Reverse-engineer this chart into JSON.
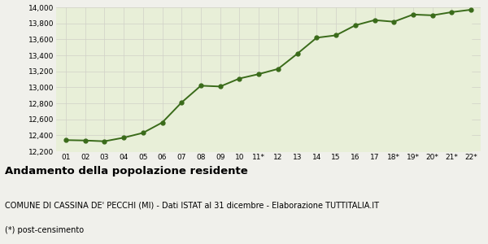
{
  "x_labels": [
    "01",
    "02",
    "03",
    "04",
    "05",
    "06",
    "07",
    "08",
    "09",
    "10",
    "11*",
    "12",
    "13",
    "14",
    "15",
    "16",
    "17",
    "18*",
    "19*",
    "20*",
    "21*",
    "22*"
  ],
  "y_values": [
    12340,
    12335,
    12325,
    12370,
    12430,
    12560,
    12810,
    13020,
    13010,
    13110,
    13165,
    13230,
    13420,
    13620,
    13650,
    13775,
    13840,
    13820,
    13910,
    13900,
    13940,
    13970
  ],
  "line_color": "#3a6b1a",
  "fill_color": "#e8efd8",
  "background_color": "#f0f0eb",
  "grid_color": "#d0d0c8",
  "ylim_min": 12200,
  "ylim_max": 14000,
  "yticks": [
    12200,
    12400,
    12600,
    12800,
    13000,
    13200,
    13400,
    13600,
    13800,
    14000
  ],
  "title": "Andamento della popolazione residente",
  "subtitle": "COMUNE DI CASSINA DE' PECCHI (MI) - Dati ISTAT al 31 dicembre - Elaborazione TUTTITALIA.IT",
  "footnote": "(*) post-censimento",
  "title_fontsize": 9.5,
  "subtitle_fontsize": 7,
  "footnote_fontsize": 7,
  "tick_fontsize": 6.5,
  "marker_size": 3.5,
  "linewidth": 1.4
}
